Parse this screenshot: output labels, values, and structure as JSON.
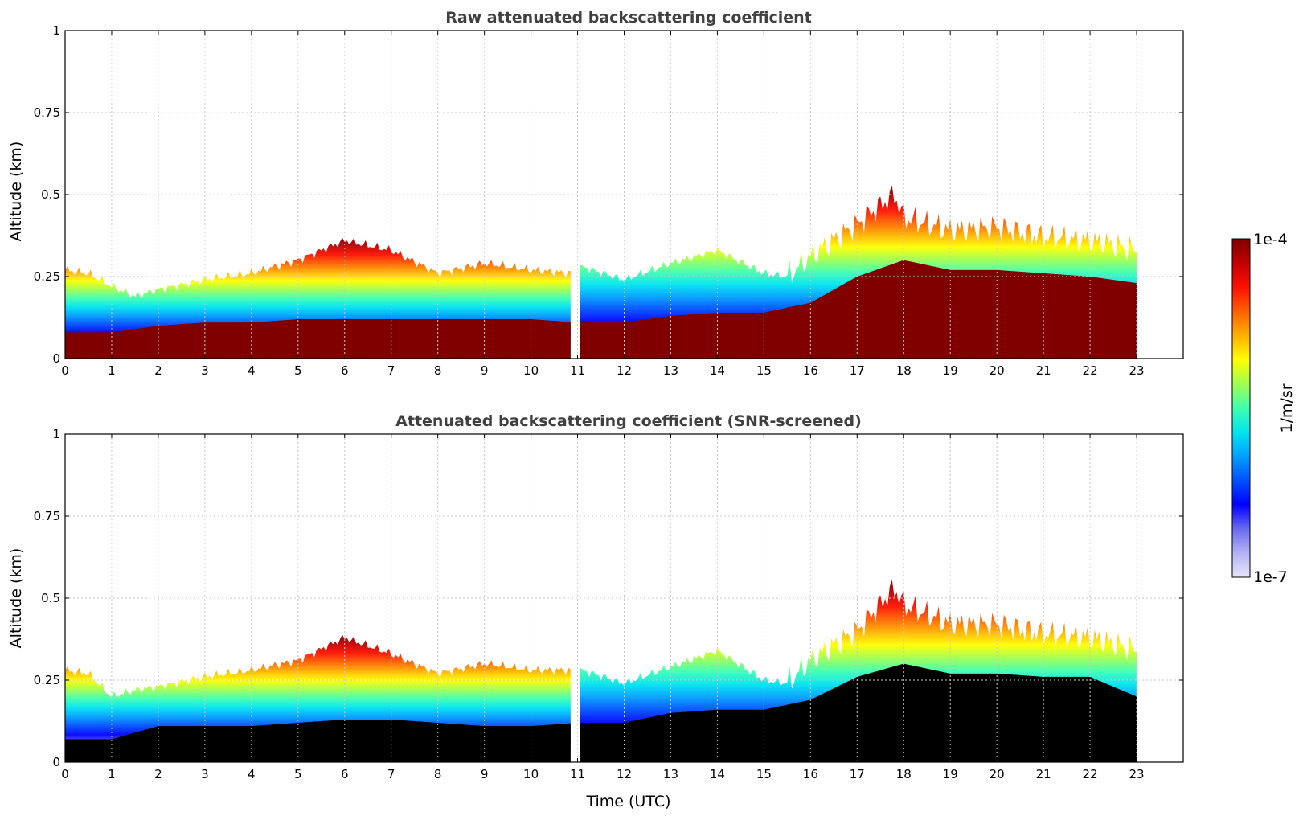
{
  "chart_data": [
    {
      "type": "heatmap",
      "title": "Raw attenuated backscattering coefficient",
      "ylabel": "Altitude (km)",
      "xlabel": "",
      "xlim": [
        0,
        24
      ],
      "ylim": [
        0,
        1
      ],
      "x_ticks": [
        "0",
        "1",
        "2",
        "3",
        "4",
        "5",
        "6",
        "7",
        "8",
        "9",
        "10",
        "11",
        "12",
        "13",
        "14",
        "15",
        "16",
        "17",
        "18",
        "19",
        "20",
        "21",
        "22",
        "23"
      ],
      "y_ticks": [
        "0",
        "0.25",
        "0.5",
        "0.75",
        "1"
      ],
      "grid": true,
      "data_gap": [
        10.85,
        11.05
      ],
      "data_end": 23,
      "max_altitude_profile": {
        "time": [
          0,
          0.5,
          1,
          1.5,
          2,
          3,
          4,
          5,
          6,
          7,
          8,
          9,
          10,
          10.8,
          11.1,
          12,
          13,
          14,
          15,
          15.5,
          16,
          17,
          17.8,
          18,
          19,
          20,
          21,
          22,
          23
        ],
        "altitude_km": [
          0.27,
          0.26,
          0.22,
          0.19,
          0.21,
          0.24,
          0.26,
          0.3,
          0.36,
          0.33,
          0.26,
          0.29,
          0.27,
          0.26,
          0.28,
          0.24,
          0.29,
          0.33,
          0.26,
          0.25,
          0.31,
          0.41,
          0.5,
          0.43,
          0.39,
          0.4,
          0.37,
          0.36,
          0.33
        ]
      },
      "saturated_top_profile": {
        "time": [
          0,
          0.5,
          1,
          2,
          3,
          4,
          5,
          6,
          7,
          8,
          9,
          10,
          11,
          12,
          13,
          14,
          15,
          16,
          17,
          18,
          19,
          20,
          21,
          22,
          23
        ],
        "altitude_km": [
          0.08,
          0.08,
          0.08,
          0.1,
          0.11,
          0.11,
          0.12,
          0.12,
          0.12,
          0.12,
          0.12,
          0.12,
          0.11,
          0.11,
          0.13,
          0.14,
          0.14,
          0.17,
          0.25,
          0.3,
          0.27,
          0.27,
          0.26,
          0.25,
          0.23
        ]
      }
    },
    {
      "type": "heatmap",
      "title": "Attenuated backscattering coefficient (SNR-screened)",
      "ylabel": "Altitude (km)",
      "xlabel": "Time (UTC)",
      "xlim": [
        0,
        24
      ],
      "ylim": [
        0,
        1
      ],
      "x_ticks": [
        "0",
        "1",
        "2",
        "3",
        "4",
        "5",
        "6",
        "7",
        "8",
        "9",
        "10",
        "11",
        "12",
        "13",
        "14",
        "15",
        "16",
        "17",
        "18",
        "19",
        "20",
        "21",
        "22",
        "23"
      ],
      "y_ticks": [
        "0",
        "0.25",
        "0.5",
        "0.75",
        "1"
      ],
      "grid": true,
      "data_gap": [
        10.85,
        11.05
      ],
      "data_end": 23,
      "screened_color": "#000000",
      "max_altitude_profile": {
        "time": [
          0,
          0.5,
          1,
          1.5,
          2,
          3,
          4,
          5,
          6,
          7,
          8,
          9,
          10,
          10.8,
          11.1,
          12,
          13,
          14,
          15,
          15.5,
          16,
          17,
          17.8,
          18,
          19,
          20,
          21,
          22,
          23
        ],
        "altitude_km": [
          0.28,
          0.27,
          0.2,
          0.22,
          0.23,
          0.26,
          0.28,
          0.31,
          0.38,
          0.33,
          0.27,
          0.3,
          0.28,
          0.28,
          0.28,
          0.24,
          0.29,
          0.34,
          0.25,
          0.24,
          0.31,
          0.4,
          0.53,
          0.48,
          0.42,
          0.42,
          0.39,
          0.38,
          0.34
        ]
      },
      "saturated_top_profile": {
        "time": [
          0,
          0.5,
          1,
          2,
          3,
          4,
          5,
          6,
          7,
          8,
          9,
          10,
          11,
          12,
          13,
          14,
          15,
          16,
          17,
          18,
          19,
          20,
          21,
          22,
          23
        ],
        "altitude_km": [
          0.07,
          0.07,
          0.07,
          0.11,
          0.11,
          0.11,
          0.12,
          0.13,
          0.13,
          0.12,
          0.11,
          0.11,
          0.12,
          0.12,
          0.15,
          0.16,
          0.16,
          0.19,
          0.26,
          0.3,
          0.27,
          0.27,
          0.26,
          0.26,
          0.2
        ]
      }
    }
  ],
  "colorbar": {
    "label": "1/m/sr",
    "min_label": "1e-7",
    "max_label": "1e-4",
    "colors": [
      "#e6e6fa",
      "#b3b3f5",
      "#6a6af0",
      "#0000ff",
      "#0050ff",
      "#00a0ff",
      "#00e5ee",
      "#40ffb0",
      "#a0ff50",
      "#ffff00",
      "#ffb000",
      "#ff6000",
      "#ff1000",
      "#c00000",
      "#800000"
    ]
  }
}
